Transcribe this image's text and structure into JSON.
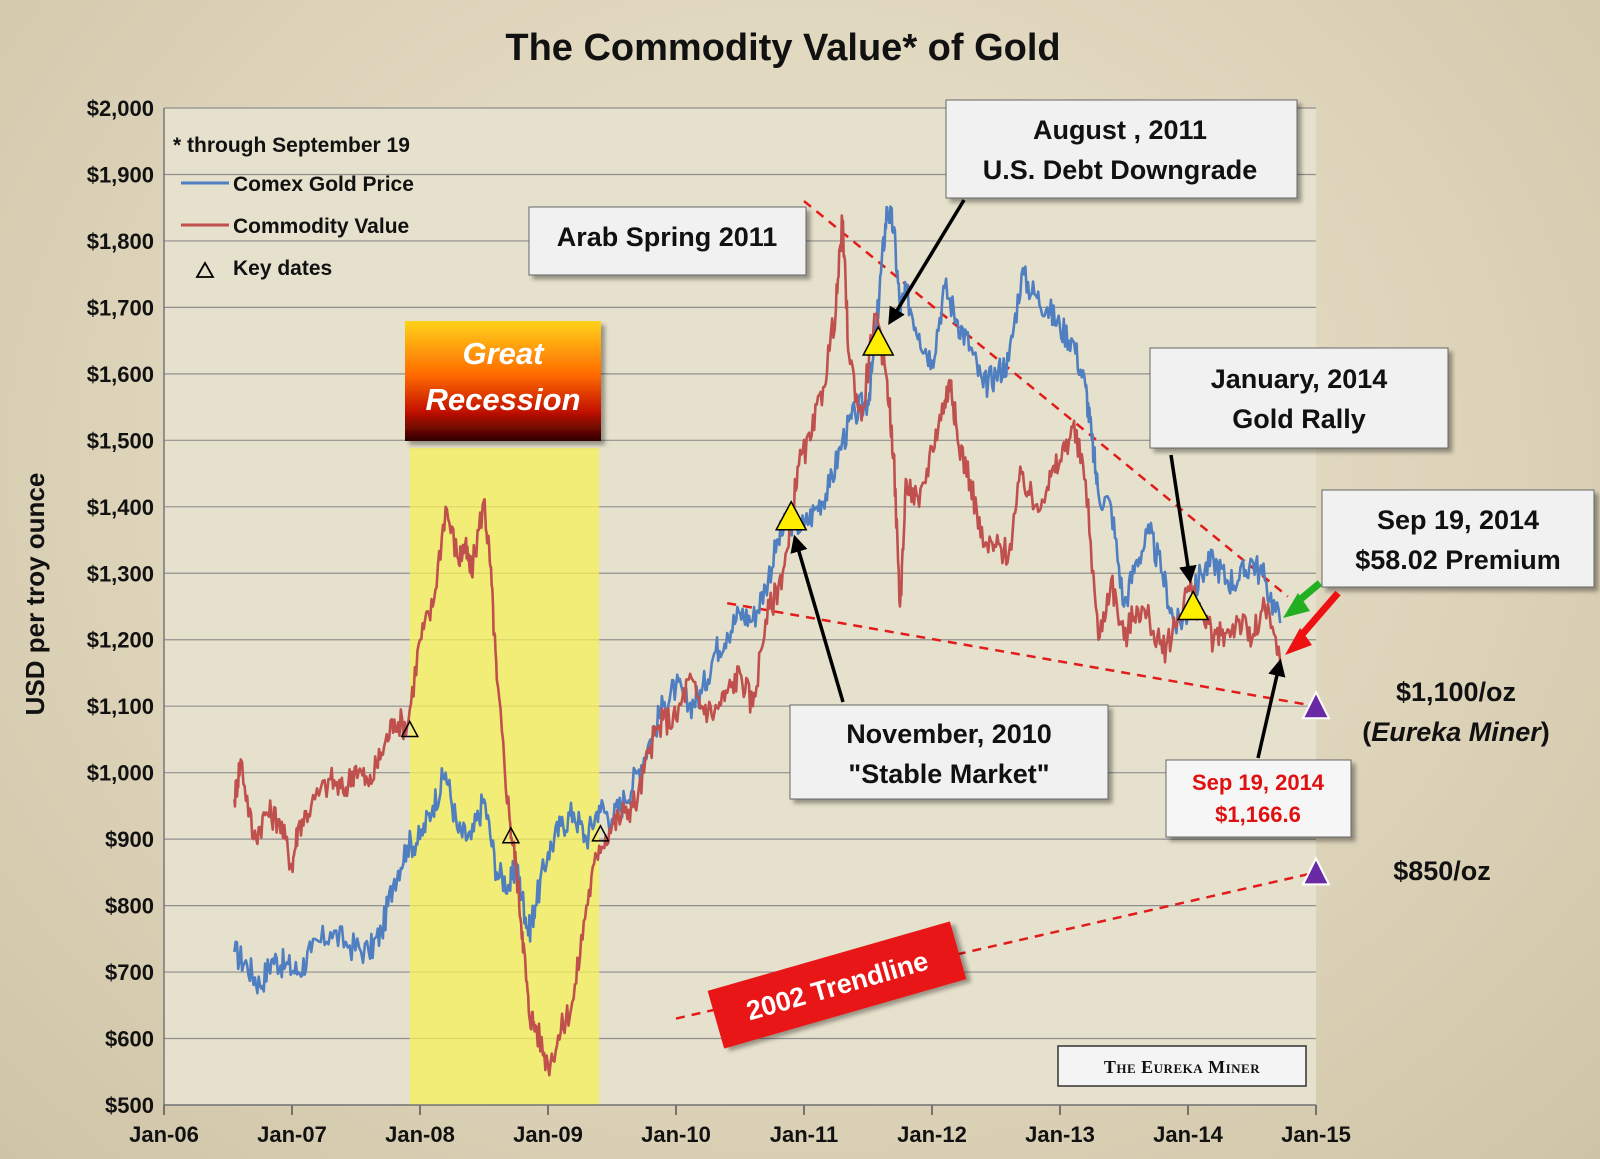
{
  "chart_data": {
    "type": "line",
    "title": "The Commodity Value* of Gold",
    "subtitle": "* through September 19",
    "ylabel": "USD per troy ounce",
    "xlabel": "",
    "ylim": [
      500,
      2000
    ],
    "y_ticks": [
      500,
      600,
      700,
      800,
      900,
      1000,
      1100,
      1200,
      1300,
      1400,
      1500,
      1600,
      1700,
      1800,
      1900,
      2000
    ],
    "y_tick_labels": [
      "$500",
      "$600",
      "$700",
      "$800",
      "$900",
      "$1,000",
      "$1,100",
      "$1,200",
      "$1,300",
      "$1,400",
      "$1,500",
      "$1,600",
      "$1,700",
      "$1,800",
      "$1,900",
      "$2,000"
    ],
    "xlim": [
      2006.0,
      2015.0
    ],
    "x_ticks": [
      2006,
      2007,
      2008,
      2009,
      2010,
      2011,
      2012,
      2013,
      2014,
      2015
    ],
    "x_tick_labels": [
      "Jan-06",
      "Jan-07",
      "Jan-08",
      "Jan-09",
      "Jan-10",
      "Jan-11",
      "Jan-12",
      "Jan-13",
      "Jan-14",
      "Jan-15"
    ],
    "grid": true,
    "legend": [
      {
        "label": "Comex Gold Price",
        "color": "#4f7fc1",
        "marker": "line"
      },
      {
        "label": "Commodity Value",
        "color": "#c0504d",
        "marker": "line"
      },
      {
        "label": "Key dates",
        "color": "#000000",
        "marker": "triangle"
      }
    ],
    "series": [
      {
        "name": "Comex Gold Price",
        "color": "#4f7fc1",
        "x": [
          2006.55,
          2006.65,
          2006.75,
          2006.85,
          2006.95,
          2007.05,
          2007.15,
          2007.3,
          2007.45,
          2007.6,
          2007.7,
          2007.8,
          2007.9,
          2008.0,
          2008.1,
          2008.2,
          2008.3,
          2008.4,
          2008.5,
          2008.6,
          2008.7,
          2008.75,
          2008.8,
          2008.85,
          2008.9,
          2009.0,
          2009.1,
          2009.2,
          2009.3,
          2009.4,
          2009.5,
          2009.6,
          2009.7,
          2009.8,
          2009.9,
          2010.0,
          2010.1,
          2010.2,
          2010.3,
          2010.4,
          2010.5,
          2010.6,
          2010.7,
          2010.8,
          2010.88,
          2011.0,
          2011.1,
          2011.2,
          2011.3,
          2011.4,
          2011.5,
          2011.55,
          2011.6,
          2011.65,
          2011.7,
          2011.75,
          2011.8,
          2011.9,
          2012.0,
          2012.1,
          2012.2,
          2012.3,
          2012.4,
          2012.5,
          2012.6,
          2012.7,
          2012.8,
          2012.9,
          2013.0,
          2013.1,
          2013.2,
          2013.25,
          2013.3,
          2013.4,
          2013.5,
          2013.6,
          2013.7,
          2013.8,
          2013.9,
          2014.0,
          2014.1,
          2014.2,
          2014.3,
          2014.4,
          2014.5,
          2014.6,
          2014.72
        ],
        "y": [
          730,
          710,
          680,
          720,
          710,
          700,
          730,
          760,
          740,
          730,
          760,
          840,
          890,
          900,
          950,
          1000,
          910,
          900,
          960,
          850,
          830,
          860,
          810,
          760,
          800,
          880,
          920,
          940,
          900,
          950,
          930,
          960,
          1000,
          1050,
          1100,
          1130,
          1100,
          1120,
          1180,
          1210,
          1240,
          1230,
          1280,
          1350,
          1380,
          1370,
          1400,
          1430,
          1500,
          1540,
          1560,
          1630,
          1750,
          1850,
          1820,
          1700,
          1720,
          1660,
          1620,
          1730,
          1680,
          1640,
          1580,
          1600,
          1620,
          1750,
          1720,
          1700,
          1670,
          1650,
          1580,
          1500,
          1420,
          1400,
          1250,
          1320,
          1360,
          1300,
          1220,
          1240,
          1300,
          1320,
          1290,
          1290,
          1320,
          1290,
          1225
        ]
      },
      {
        "name": "Commodity Value",
        "color": "#c0504d",
        "x": [
          2006.55,
          2006.6,
          2006.7,
          2006.8,
          2006.9,
          2007.0,
          2007.05,
          2007.15,
          2007.3,
          2007.4,
          2007.5,
          2007.6,
          2007.7,
          2007.8,
          2007.9,
          2008.0,
          2008.1,
          2008.2,
          2008.3,
          2008.35,
          2008.4,
          2008.5,
          2008.55,
          2008.6,
          2008.7,
          2008.75,
          2008.8,
          2008.85,
          2008.9,
          2009.0,
          2009.1,
          2009.2,
          2009.3,
          2009.4,
          2009.5,
          2009.6,
          2009.7,
          2009.8,
          2009.9,
          2010.0,
          2010.1,
          2010.2,
          2010.3,
          2010.4,
          2010.5,
          2010.6,
          2010.7,
          2010.8,
          2010.88,
          2010.95,
          2011.05,
          2011.15,
          2011.25,
          2011.3,
          2011.35,
          2011.45,
          2011.55,
          2011.65,
          2011.7,
          2011.75,
          2011.8,
          2011.9,
          2012.0,
          2012.1,
          2012.15,
          2012.2,
          2012.3,
          2012.4,
          2012.5,
          2012.6,
          2012.7,
          2012.8,
          2012.9,
          2013.0,
          2013.1,
          2013.2,
          2013.3,
          2013.4,
          2013.5,
          2013.6,
          2013.7,
          2013.8,
          2013.9,
          2014.0,
          2014.1,
          2014.2,
          2014.3,
          2014.4,
          2014.5,
          2014.6,
          2014.72
        ],
        "y": [
          960,
          1020,
          900,
          940,
          930,
          860,
          920,
          950,
          990,
          970,
          1010,
          980,
          1030,
          1080,
          1070,
          1200,
          1250,
          1400,
          1320,
          1340,
          1300,
          1410,
          1310,
          1140,
          930,
          860,
          760,
          640,
          620,
          560,
          610,
          660,
          800,
          890,
          920,
          940,
          960,
          1040,
          1080,
          1080,
          1140,
          1100,
          1090,
          1120,
          1150,
          1100,
          1230,
          1280,
          1340,
          1460,
          1500,
          1580,
          1700,
          1830,
          1630,
          1530,
          1690,
          1590,
          1480,
          1250,
          1440,
          1400,
          1490,
          1560,
          1590,
          1500,
          1440,
          1340,
          1340,
          1330,
          1450,
          1400,
          1430,
          1470,
          1520,
          1440,
          1200,
          1290,
          1200,
          1250,
          1230,
          1180,
          1220,
          1280,
          1240,
          1200,
          1210,
          1230,
          1200,
          1250,
          1167
        ]
      }
    ],
    "key_dates": [
      {
        "x": 2007.92,
        "y": 1065,
        "style": "small"
      },
      {
        "x": 2008.71,
        "y": 905,
        "style": "small"
      },
      {
        "x": 2009.41,
        "y": 908,
        "style": "small"
      },
      {
        "x": 2010.9,
        "y": 1385,
        "style": "large"
      },
      {
        "x": 2011.58,
        "y": 1648,
        "style": "large"
      },
      {
        "x": 2014.04,
        "y": 1250,
        "style": "large"
      }
    ],
    "targets": [
      {
        "x": 2015.0,
        "y": 1100,
        "label": "$1,100/oz",
        "sublabel": "Eureka Miner"
      },
      {
        "x": 2015.0,
        "y": 850,
        "label": "$850/oz"
      }
    ],
    "recession": {
      "x0": 2007.92,
      "x1": 2009.4,
      "label_line1": "Great",
      "label_line2": "Recession"
    },
    "trendlines": [
      {
        "name": "upper",
        "x0": 2011.0,
        "y0": 1860,
        "x1": 2014.78,
        "y1": 1265
      },
      {
        "name": "lower",
        "x0": 2010.4,
        "y0": 1255,
        "x1": 2015.0,
        "y1": 1100
      },
      {
        "name": "2002 Trendline",
        "x0": 2010.0,
        "y0": 630,
        "x1": 2015.0,
        "y1": 850
      }
    ],
    "annotations": {
      "arab_spring": "Arab Spring 2011",
      "august_2011": {
        "line1": "August , 2011",
        "line2": "U.S. Debt Downgrade"
      },
      "november_2010": {
        "line1": "November, 2010",
        "line2": "\"Stable Market\""
      },
      "january_2014": {
        "line1": "January, 2014",
        "line2": "Gold Rally"
      },
      "premium": {
        "line1": "Sep 19, 2014",
        "line2": "$58.02 Premium"
      },
      "commodity_sep": {
        "line1": "Sep 19, 2014",
        "line2": "$1,166.6"
      },
      "target_1100_line1": "$1,100/oz",
      "target_1100_open": "(",
      "target_1100_italic": "Eureka Miner",
      "target_1100_close": ")",
      "target_850": "$850/oz",
      "trendline_label": "2002 Trendline",
      "brand": "The Eureka Miner"
    }
  }
}
